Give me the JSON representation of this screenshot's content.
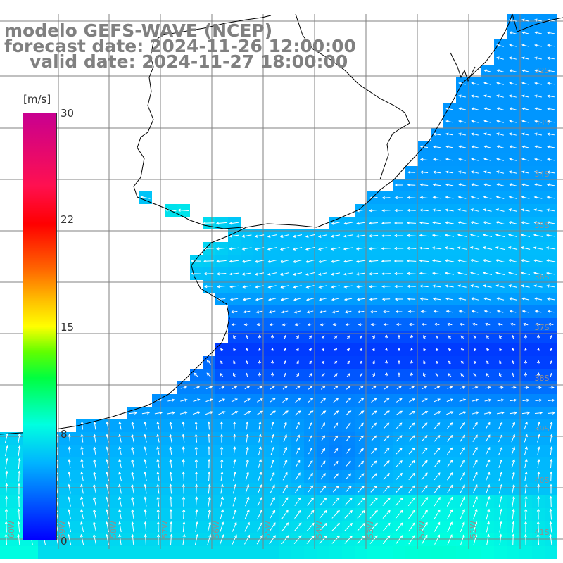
{
  "title": {
    "line1": "modelo GEFS-WAVE (NCEP)",
    "line2": "forecast date: 2024-11-26 12:00:00",
    "line3": "valid date: 2024-11-27 18:00:00"
  },
  "colorbar": {
    "unit": "[m/s]",
    "ticks": [
      "30",
      "22",
      "15",
      "8",
      "0"
    ],
    "min": 0,
    "max": 30
  },
  "lat_labels": [
    "32S",
    "33S",
    "34S",
    "35S",
    "36S",
    "37S",
    "38S",
    "39S",
    "40S",
    "41S"
  ],
  "lon_labels": [
    "60W",
    "59W",
    "58W",
    "57W",
    "56W",
    "55W",
    "54W",
    "53W",
    "52W",
    "51W"
  ],
  "colors": {
    "land": "#ffffff",
    "coastline": "#000000",
    "grid": "#808080",
    "vectors": "#ffffff",
    "title": "#808080"
  }
}
